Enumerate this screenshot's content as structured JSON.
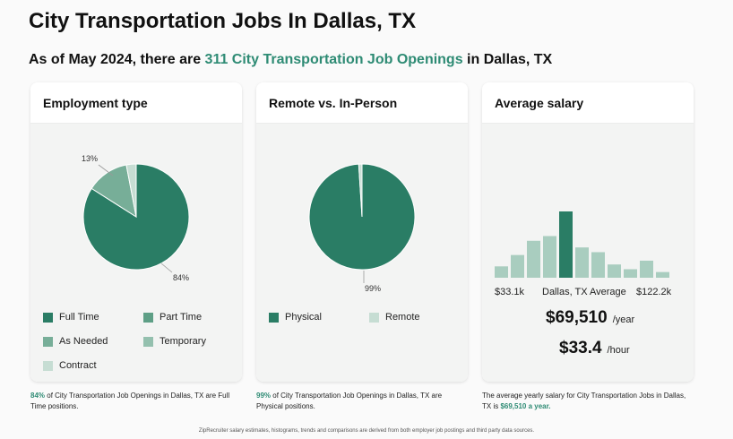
{
  "title": "City Transportation Jobs In Dallas, TX",
  "subtitle": {
    "prefix": "As of May 2024, there are ",
    "highlight": "311 City Transportation Job Openings",
    "suffix": " in Dallas, TX"
  },
  "colors": {
    "accent": "#2e8b74",
    "full_time": "#2a7d65",
    "part_time": "#5e9f86",
    "as_needed": "#77ae98",
    "temporary": "#94c0ae",
    "contract": "#c6ddd3",
    "physical": "#2a7d65",
    "remote": "#c6ddd3"
  },
  "cards": {
    "employment": {
      "heading": "Employment type",
      "label_major": "84%",
      "label_minor": "13%",
      "legend": [
        {
          "key": "full_time",
          "label": "Full Time"
        },
        {
          "key": "part_time",
          "label": "Part Time"
        },
        {
          "key": "as_needed",
          "label": "As Needed"
        },
        {
          "key": "temporary",
          "label": "Temporary"
        },
        {
          "key": "contract",
          "label": "Contract"
        }
      ],
      "note_pct": "84%",
      "note_text": " of City Transportation Job Openings in Dallas, TX are Full Time positions."
    },
    "remote": {
      "heading": "Remote vs. In-Person",
      "label_major": "99%",
      "legend": [
        {
          "key": "physical",
          "label": "Physical"
        },
        {
          "key": "remote",
          "label": "Remote"
        }
      ],
      "note_pct": "99%",
      "note_text": " of City Transportation Job Openings in Dallas, TX are Physical positions."
    },
    "salary": {
      "heading": "Average salary",
      "min_label": "$33.1k",
      "mid_label": "Dallas, TX Average",
      "max_label": "$122.2k",
      "yearly": "$69,510",
      "yearly_unit": "/year",
      "hourly": "$33.4",
      "hourly_unit": "/hour",
      "note_text": "The average yearly salary for City Transportation Jobs in Dallas, TX is ",
      "note_value": "$69,510 a year."
    }
  },
  "footer": "ZipRecruiter salary estimates, histograms, trends and comparisons are derived from both employer job postings and third party data sources.",
  "chart_data": [
    {
      "type": "pie",
      "title": "Employment type",
      "categories": [
        "Full Time",
        "Part Time",
        "As Needed",
        "Temporary",
        "Contract"
      ],
      "values": [
        84,
        0,
        13,
        0,
        3
      ]
    },
    {
      "type": "pie",
      "title": "Remote vs. In-Person",
      "categories": [
        "Physical",
        "Remote"
      ],
      "values": [
        99,
        1
      ]
    },
    {
      "type": "bar",
      "title": "Average salary",
      "values": [
        1.2,
        2.4,
        3.9,
        4.4,
        7.0,
        3.2,
        2.7,
        1.4,
        0.9,
        1.8,
        0.6
      ],
      "highlight_index": 4,
      "xlabel_min": "$33.1k",
      "xlabel_mid": "Dallas, TX Average",
      "xlabel_max": "$122.2k"
    }
  ]
}
